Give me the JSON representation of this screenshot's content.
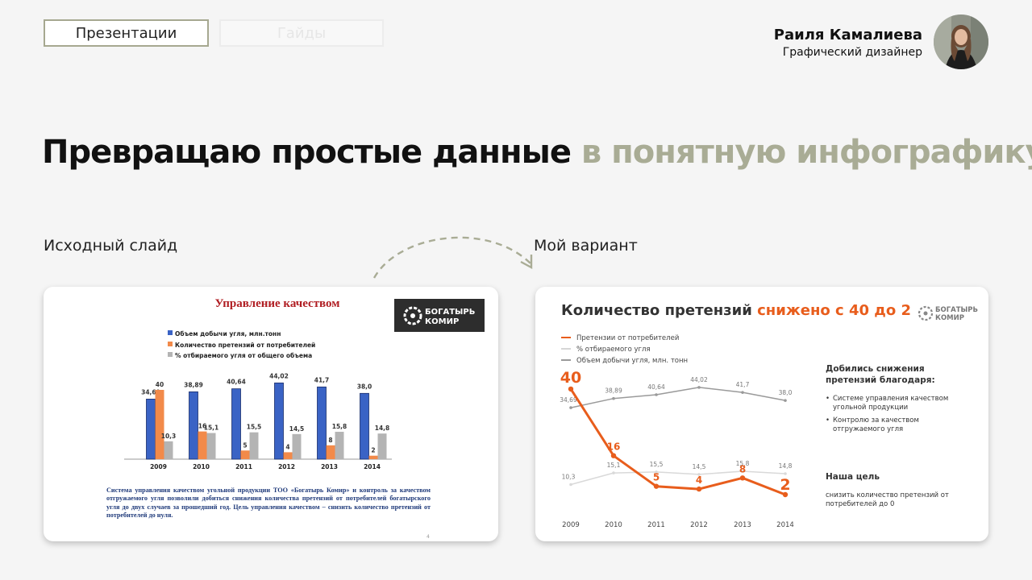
{
  "tabs": [
    {
      "label": "Презентации",
      "active": true
    },
    {
      "label": "Гайды",
      "active": false
    }
  ],
  "author": {
    "name": "Раиля Камалиева",
    "role": "Графический дизайнер"
  },
  "headline": {
    "main": "Превращаю простые данные",
    "accent": "в понятную инфографику"
  },
  "sections": {
    "original_label": "Исходный слайд",
    "mine_label": "Мой вариант"
  },
  "original_slide": {
    "title": "Управление качеством",
    "logo_text": [
      "БОГАТЫРЬ",
      "КОМИР"
    ],
    "page_number": "4",
    "body_text": "Система управления качеством угольной продукции ТОО «Богатырь Комир» и контроль за качеством отгружаемого угля позволили добиться снижения количества претензий от потребителей богатырского угля до двух случаев за прошедший год. Цель управления качеством – снизить количество претензий от потребителей до нуля."
  },
  "my_slide": {
    "title_main": "Количество претензий",
    "title_accent": "снижено с 40 до 2",
    "logo_text": [
      "БОГАТЫРЬ",
      "КОМИР"
    ],
    "side_heading": "Добились снижения претензий благодаря:",
    "bullets": [
      "Системе управления качеством угольной продукции",
      "Контролю за качеством отгружаемого угля"
    ],
    "goal_heading": "Наша цель",
    "goal_text": "снизить количество претензий от потребителей до 0"
  },
  "colors": {
    "accent": "#e85d1c",
    "olive": "#a9ac95",
    "dark_red": "#b01d22",
    "bar_blue": "#3a63c5",
    "bar_orange": "#f28a4a",
    "bar_gray": "#b4b4b4"
  },
  "chart_data": [
    {
      "type": "bar",
      "categories": [
        "2009",
        "2010",
        "2011",
        "2012",
        "2013",
        "2014"
      ],
      "series": [
        {
          "name": "Объем добычи угля, млн.тонн",
          "values": [
            34.69,
            38.89,
            40.64,
            44.02,
            41.7,
            38.0
          ],
          "labels": [
            "34,69",
            "38,89",
            "40,64",
            "44,02",
            "41,7",
            "38,0"
          ]
        },
        {
          "name": "Количество претензий от потребителей",
          "values": [
            40,
            16,
            5,
            4,
            8,
            2
          ],
          "labels": [
            "40",
            "16",
            "5",
            "4",
            "8",
            "2"
          ]
        },
        {
          "name": "% отбираемого угля от общего объема",
          "values": [
            10.3,
            15.1,
            15.5,
            14.5,
            15.8,
            14.8
          ],
          "labels": [
            "10,3",
            "15,1",
            "15,5",
            "14,5",
            "15,8",
            "14,8"
          ]
        }
      ]
    },
    {
      "type": "line",
      "categories": [
        "2009",
        "2010",
        "2011",
        "2012",
        "2013",
        "2014"
      ],
      "series": [
        {
          "name": "Претензии от потребителей",
          "values": [
            40,
            16,
            5,
            4,
            8,
            2
          ],
          "labels": [
            "40",
            "16",
            "5",
            "4",
            "8",
            "2"
          ]
        },
        {
          "name": "% отбираемого угля",
          "values": [
            10.3,
            15.1,
            15.5,
            14.5,
            15.8,
            14.8
          ],
          "labels": [
            "10,3",
            "15,1",
            "15,5",
            "14,5",
            "15,8",
            "14,8"
          ]
        },
        {
          "name": "Объем добычи угля, млн. тонн",
          "values": [
            34.69,
            38.89,
            40.64,
            44.02,
            41.7,
            38.0
          ],
          "labels": [
            "34,69",
            "38,89",
            "40,64",
            "44,02",
            "41,7",
            "38,0"
          ]
        }
      ]
    }
  ]
}
